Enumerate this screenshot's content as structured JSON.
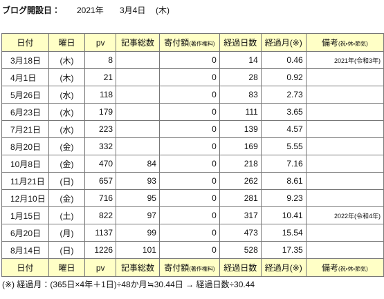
{
  "header": {
    "label": "ブログ開設日：",
    "year": "2021年",
    "date": "3月4日",
    "weekday": "(木)"
  },
  "table": {
    "columns": [
      {
        "text": "日付"
      },
      {
        "text": "曜日"
      },
      {
        "text": "pv"
      },
      {
        "text": "記事総数"
      },
      {
        "text": "寄付額",
        "sub": "(著作権料)"
      },
      {
        "text": "経過日数"
      },
      {
        "text": "経過月(※)"
      },
      {
        "text": "備考",
        "sub": "(祝・休・節気)"
      }
    ],
    "rows": [
      [
        "3月18日",
        "(木)",
        8,
        null,
        0,
        14,
        0.46,
        "2021年(令和3年)"
      ],
      [
        "4月1日",
        "(木)",
        21,
        null,
        0,
        28,
        0.92,
        null
      ],
      [
        "5月26日",
        "(水)",
        118,
        null,
        0,
        83,
        2.73,
        null
      ],
      [
        "6月23日",
        "(水)",
        179,
        null,
        0,
        111,
        3.65,
        null
      ],
      [
        "7月21日",
        "(水)",
        223,
        null,
        0,
        139,
        4.57,
        null
      ],
      [
        "8月20日",
        "(金)",
        332,
        null,
        0,
        169,
        5.55,
        null
      ],
      [
        "10月8日",
        "(金)",
        470,
        84,
        0,
        218,
        7.16,
        null
      ],
      [
        "11月21日",
        "(日)",
        657,
        93,
        0,
        262,
        8.61,
        null
      ],
      [
        "12月10日",
        "(金)",
        716,
        95,
        0,
        281,
        9.23,
        null
      ],
      [
        "1月15日",
        "(土)",
        822,
        97,
        0,
        317,
        10.41,
        "2022年(令和4年)"
      ],
      [
        "6月20日",
        "(月)",
        1137,
        99,
        0,
        473,
        15.54,
        null
      ],
      [
        "8月14日",
        "(日)",
        1226,
        101,
        0,
        528,
        17.35,
        null
      ]
    ]
  },
  "footnote": "(※) 経過月：(365日×4年＋1日)÷48か月≒30.44日 → 経過日数÷30.44"
}
